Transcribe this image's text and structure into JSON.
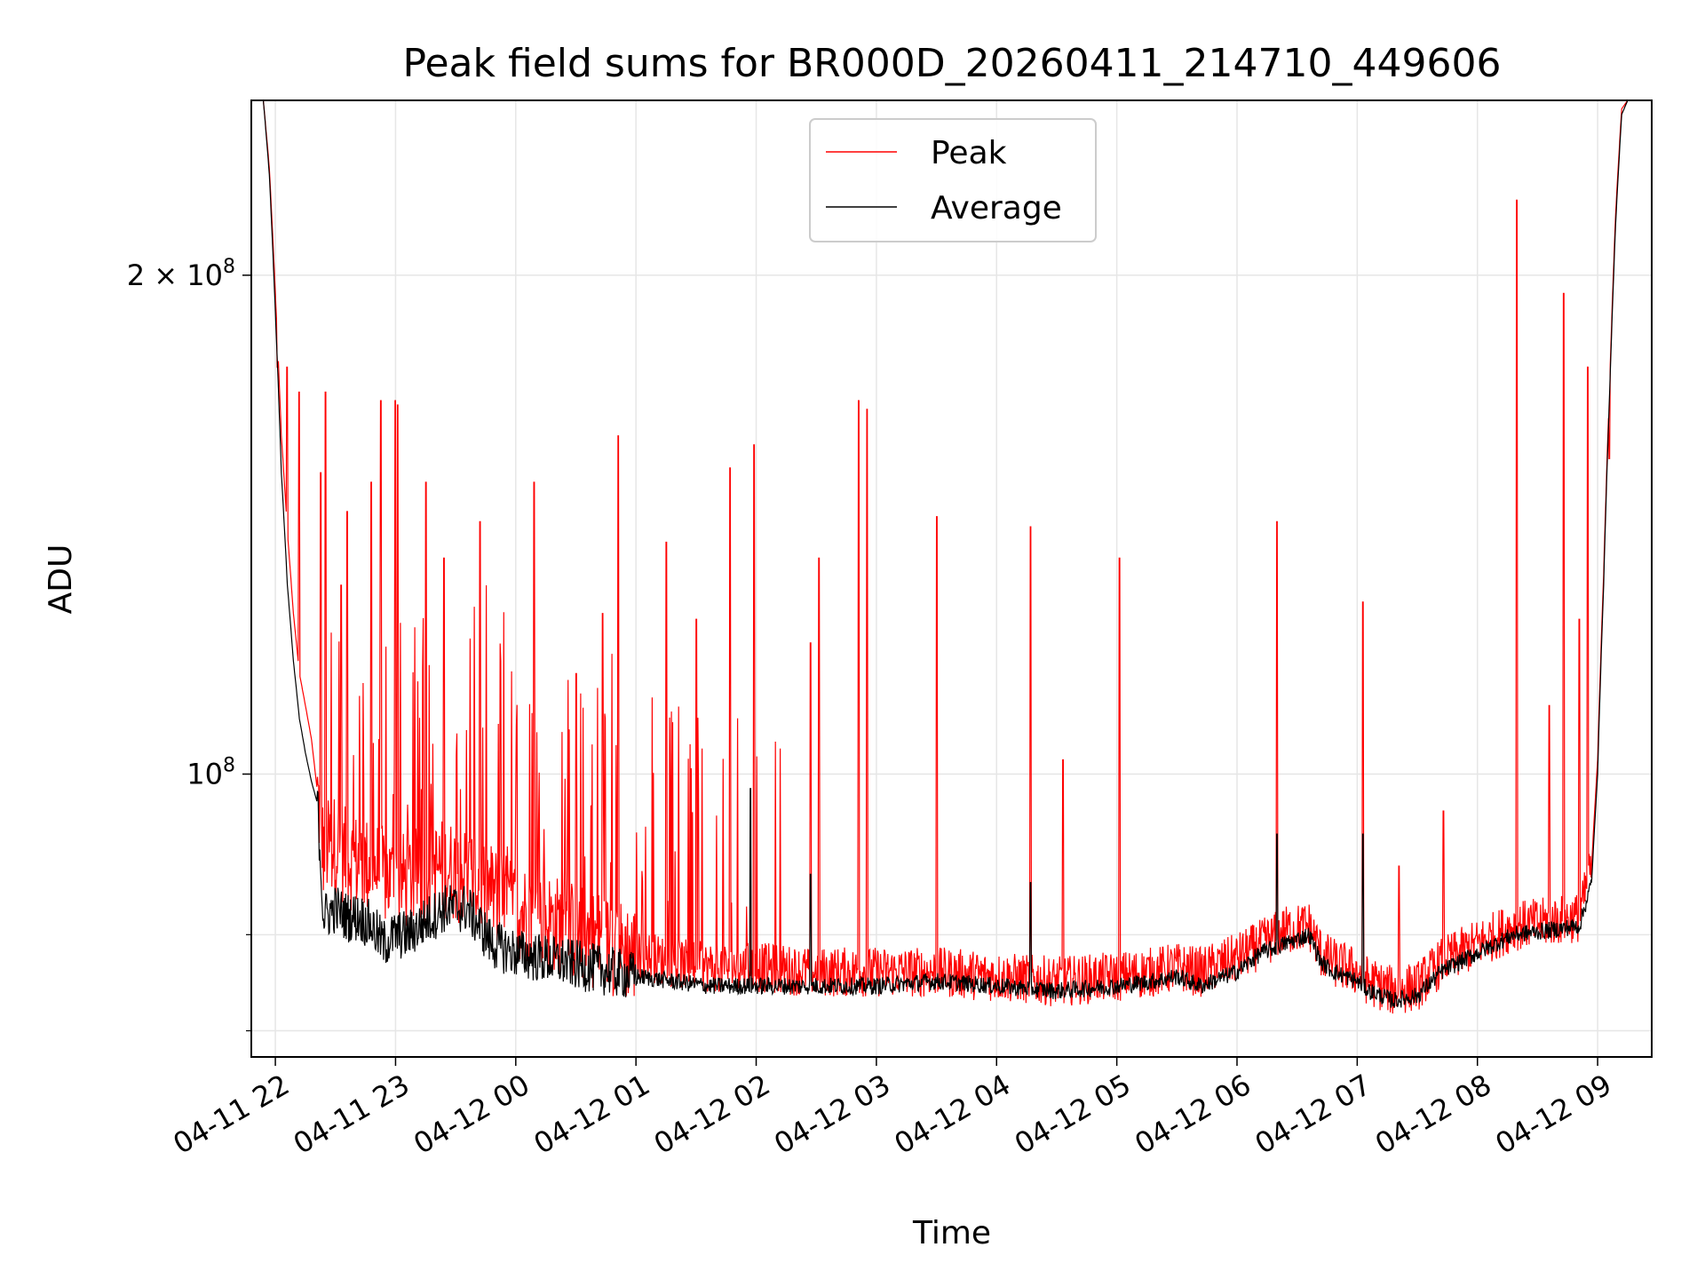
{
  "chart_data": {
    "type": "line",
    "title": "Peak field sums for BR000D_20260411_214710_449606",
    "xlabel": "Time",
    "ylabel": "ADU",
    "yscale": "log",
    "ylim": [
      67500000,
      255000000
    ],
    "xlim_hours": [
      -0.2,
      11.45
    ],
    "x_ticks": [
      {
        "h": 0,
        "label": "04-11 22"
      },
      {
        "h": 1,
        "label": "04-11 23"
      },
      {
        "h": 2,
        "label": "04-12 00"
      },
      {
        "h": 3,
        "label": "04-12 01"
      },
      {
        "h": 4,
        "label": "04-12 02"
      },
      {
        "h": 5,
        "label": "04-12 03"
      },
      {
        "h": 6,
        "label": "04-12 04"
      },
      {
        "h": 7,
        "label": "04-12 05"
      },
      {
        "h": 8,
        "label": "04-12 06"
      },
      {
        "h": 9,
        "label": "04-12 07"
      },
      {
        "h": 10,
        "label": "04-12 08"
      },
      {
        "h": 11,
        "label": "04-12 09"
      }
    ],
    "y_major_ticks": [
      {
        "value": 100000000,
        "base": "10",
        "exp": "8",
        "mult": ""
      },
      {
        "value": 200000000,
        "base": "10",
        "exp": "8",
        "mult": "2 × "
      }
    ],
    "y_minor_ticks": [
      70000000,
      80000000
    ],
    "grid": true,
    "legend_position": "upper center",
    "legend": [
      "Peak",
      "Average"
    ],
    "series": [
      {
        "name": "Average",
        "color": "#000000",
        "points": [
          [
            -0.2,
            255
          ],
          [
            -0.1,
            255
          ],
          [
            -0.05,
            230
          ],
          [
            0,
            190
          ],
          [
            0.05,
            152
          ],
          [
            0.1,
            130
          ],
          [
            0.15,
            117
          ],
          [
            0.2,
            108
          ],
          [
            0.25,
            103
          ],
          [
            0.3,
            99
          ],
          [
            0.35,
            96
          ],
          [
            0.4,
            82
          ],
          [
            0.5,
            83
          ],
          [
            0.6,
            82
          ],
          [
            0.7,
            82
          ],
          [
            0.8,
            81
          ],
          [
            0.9,
            79
          ],
          [
            1.0,
            80
          ],
          [
            1.1,
            80
          ],
          [
            1.2,
            81
          ],
          [
            1.3,
            82
          ],
          [
            1.4,
            83
          ],
          [
            1.5,
            83
          ],
          [
            1.6,
            83
          ],
          [
            1.7,
            81
          ],
          [
            1.8,
            79
          ],
          [
            2.0,
            78
          ],
          [
            2.2,
            77.5
          ],
          [
            2.4,
            77
          ],
          [
            2.6,
            76.5
          ],
          [
            2.8,
            76
          ],
          [
            3.0,
            75.5
          ],
          [
            3.3,
            75
          ],
          [
            3.6,
            74.5
          ],
          [
            4.0,
            74.5
          ],
          [
            4.5,
            74.5
          ],
          [
            5.0,
            74.5
          ],
          [
            5.5,
            75
          ],
          [
            6.0,
            74.5
          ],
          [
            6.5,
            74
          ],
          [
            7.0,
            74.5
          ],
          [
            7.3,
            75
          ],
          [
            7.5,
            75.5
          ],
          [
            7.7,
            74.5
          ],
          [
            8.0,
            76
          ],
          [
            8.2,
            78
          ],
          [
            8.4,
            79
          ],
          [
            8.6,
            80
          ],
          [
            8.7,
            77
          ],
          [
            8.8,
            76
          ],
          [
            9.0,
            75
          ],
          [
            9.1,
            74
          ],
          [
            9.3,
            73
          ],
          [
            9.5,
            73.5
          ],
          [
            9.7,
            76
          ],
          [
            10.0,
            78
          ],
          [
            10.3,
            80
          ],
          [
            10.6,
            80.5
          ],
          [
            10.85,
            81
          ],
          [
            10.95,
            86
          ],
          [
            11.0,
            100
          ],
          [
            11.05,
            130
          ],
          [
            11.1,
            170
          ],
          [
            11.15,
            215
          ],
          [
            11.2,
            250
          ],
          [
            11.25,
            255
          ],
          [
            11.45,
            255
          ]
        ]
      },
      {
        "name": "Peak",
        "color": "#ff0000",
        "points": [
          [
            -0.2,
            255
          ],
          [
            -0.1,
            255
          ],
          [
            -0.05,
            232
          ],
          [
            0,
            195
          ],
          [
            0.05,
            160
          ],
          [
            0.1,
            140
          ],
          [
            0.15,
            125
          ],
          [
            0.2,
            115
          ],
          [
            0.3,
            105
          ],
          [
            0.4,
            90
          ],
          [
            0.5,
            91
          ],
          [
            0.6,
            89
          ],
          [
            0.8,
            88
          ],
          [
            1.0,
            86
          ],
          [
            1.2,
            87
          ],
          [
            1.4,
            88
          ],
          [
            1.6,
            87
          ],
          [
            1.8,
            85
          ],
          [
            2.0,
            83
          ],
          [
            2.2,
            82
          ],
          [
            2.4,
            81
          ],
          [
            2.6,
            80
          ],
          [
            2.8,
            79
          ],
          [
            3.0,
            78
          ],
          [
            3.3,
            77
          ],
          [
            3.6,
            76.5
          ],
          [
            4.0,
            76.5
          ],
          [
            4.5,
            76
          ],
          [
            5.0,
            76
          ],
          [
            5.5,
            76
          ],
          [
            6.0,
            75.5
          ],
          [
            6.5,
            75
          ],
          [
            7.0,
            75.5
          ],
          [
            7.3,
            76
          ],
          [
            7.5,
            76.5
          ],
          [
            7.7,
            76
          ],
          [
            8.0,
            77.5
          ],
          [
            8.2,
            79
          ],
          [
            8.4,
            80.5
          ],
          [
            8.6,
            81
          ],
          [
            8.7,
            78
          ],
          [
            8.8,
            77
          ],
          [
            9.0,
            76
          ],
          [
            9.1,
            75
          ],
          [
            9.3,
            74
          ],
          [
            9.5,
            74.5
          ],
          [
            9.7,
            77
          ],
          [
            10.0,
            79
          ],
          [
            10.3,
            81
          ],
          [
            10.6,
            81.5
          ],
          [
            10.85,
            82
          ],
          [
            10.95,
            88
          ],
          [
            11.0,
            102
          ],
          [
            11.05,
            132
          ],
          [
            11.1,
            172
          ],
          [
            11.15,
            218
          ],
          [
            11.2,
            252
          ],
          [
            11.25,
            255
          ],
          [
            11.45,
            255
          ]
        ]
      }
    ],
    "peak_spikes": [
      [
        0.02,
        176
      ],
      [
        0.1,
        176
      ],
      [
        0.2,
        170
      ],
      [
        0.38,
        152
      ],
      [
        0.42,
        170
      ],
      [
        0.55,
        130
      ],
      [
        0.6,
        144
      ],
      [
        0.8,
        150
      ],
      [
        0.88,
        168
      ],
      [
        1.0,
        168
      ],
      [
        1.02,
        167
      ],
      [
        1.25,
        150
      ],
      [
        1.4,
        135
      ],
      [
        1.7,
        142
      ],
      [
        2.15,
        150
      ],
      [
        2.5,
        115
      ],
      [
        2.72,
        125
      ],
      [
        2.85,
        160
      ],
      [
        3.25,
        138
      ],
      [
        3.5,
        124
      ],
      [
        3.78,
        153
      ],
      [
        3.98,
        158
      ],
      [
        4.45,
        120
      ],
      [
        4.52,
        135
      ],
      [
        4.85,
        168
      ],
      [
        4.92,
        166
      ],
      [
        5.5,
        143
      ],
      [
        6.28,
        141
      ],
      [
        6.55,
        102
      ],
      [
        7.02,
        135
      ],
      [
        8.33,
        142
      ],
      [
        9.05,
        127
      ],
      [
        9.35,
        88
      ],
      [
        9.72,
        95
      ],
      [
        10.33,
        222
      ],
      [
        10.6,
        110
      ],
      [
        10.72,
        195
      ],
      [
        10.85,
        124
      ],
      [
        10.92,
        176
      ],
      [
        11.1,
        155
      ]
    ],
    "average_spikes": [
      [
        3.95,
        98
      ],
      [
        8.33,
        92
      ],
      [
        9.05,
        92
      ],
      [
        4.45,
        87
      ],
      [
        6.28,
        86
      ]
    ]
  }
}
